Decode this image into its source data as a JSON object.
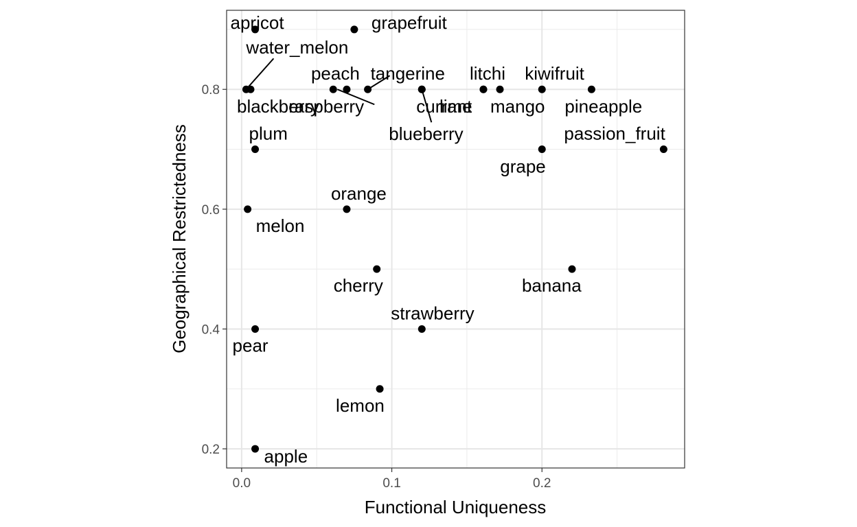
{
  "chart_data": {
    "type": "scatter",
    "xlabel": "Functional Uniqueness",
    "ylabel": "Geographical Restrictedness",
    "xlim": [
      -0.01,
      0.295
    ],
    "ylim": [
      0.168,
      0.932
    ],
    "x_ticks": [
      0.0,
      0.1,
      0.2
    ],
    "x_tick_labels": [
      "0.0",
      "0.1",
      "0.2"
    ],
    "y_ticks": [
      0.2,
      0.4,
      0.6,
      0.8
    ],
    "y_tick_labels": [
      "0.2",
      "0.4",
      "0.6",
      "0.8"
    ],
    "grid": true,
    "theme": "black-and-white",
    "points": [
      {
        "label": "apricot",
        "x": 0.009,
        "y": 0.9
      },
      {
        "label": "grapefruit",
        "x": 0.075,
        "y": 0.9
      },
      {
        "label": "water_melon",
        "x": 0.003,
        "y": 0.8
      },
      {
        "label": "blackberry",
        "x": 0.006,
        "y": 0.8
      },
      {
        "label": "raspberry",
        "x": 0.061,
        "y": 0.8
      },
      {
        "label": "peach",
        "x": 0.07,
        "y": 0.8
      },
      {
        "label": "tangerine",
        "x": 0.084,
        "y": 0.8
      },
      {
        "label": "currant",
        "x": 0.12,
        "y": 0.8
      },
      {
        "label": "blueberry",
        "x": 0.12,
        "y": 0.8
      },
      {
        "label": "lime",
        "x": 0.161,
        "y": 0.8
      },
      {
        "label": "litchi",
        "x": 0.161,
        "y": 0.8
      },
      {
        "label": "mango",
        "x": 0.172,
        "y": 0.8
      },
      {
        "label": "kiwifruit",
        "x": 0.2,
        "y": 0.8
      },
      {
        "label": "pineapple",
        "x": 0.233,
        "y": 0.8
      },
      {
        "label": "plum",
        "x": 0.009,
        "y": 0.7
      },
      {
        "label": "grape",
        "x": 0.2,
        "y": 0.7
      },
      {
        "label": "passion_fruit",
        "x": 0.281,
        "y": 0.7
      },
      {
        "label": "melon",
        "x": 0.004,
        "y": 0.6
      },
      {
        "label": "orange",
        "x": 0.07,
        "y": 0.6
      },
      {
        "label": "cherry",
        "x": 0.09,
        "y": 0.5
      },
      {
        "label": "banana",
        "x": 0.22,
        "y": 0.5
      },
      {
        "label": "pear",
        "x": 0.009,
        "y": 0.4
      },
      {
        "label": "strawberry",
        "x": 0.12,
        "y": 0.4
      },
      {
        "label": "lemon",
        "x": 0.092,
        "y": 0.3
      },
      {
        "label": "apple",
        "x": 0.009,
        "y": 0.2
      }
    ]
  }
}
